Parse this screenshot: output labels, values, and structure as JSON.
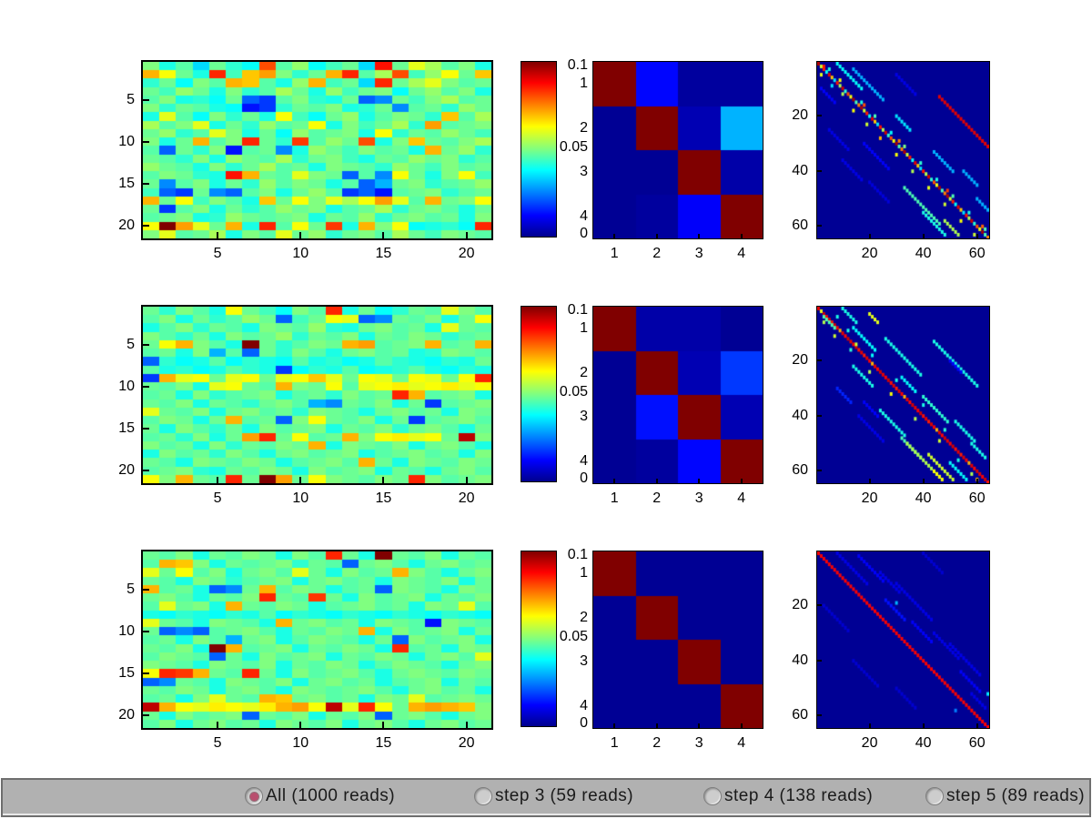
{
  "window": {
    "background": "#ffffff"
  },
  "colormap": {
    "type": "jet",
    "range_min": 0,
    "range_max": 0.1,
    "bar_labels": [
      "0.1",
      "0.05",
      "0"
    ]
  },
  "axes_labels": {
    "heatmap_x": [
      "5",
      "10",
      "15",
      "20"
    ],
    "heatmap_x_pos": [
      5,
      10,
      15,
      20
    ],
    "heatmap_y": [
      "5",
      "10",
      "15",
      "20"
    ],
    "heatmap_y_pos": [
      5,
      10,
      15,
      20
    ],
    "conf_x": [
      "1",
      "2",
      "3",
      "4"
    ],
    "conf_y": [
      "1",
      "2",
      "3",
      "4"
    ],
    "align_x": [
      "20",
      "40",
      "60"
    ],
    "align_y": [
      "20",
      "40",
      "60"
    ],
    "align_pos": [
      20,
      40,
      60
    ]
  },
  "chart_data": [
    {
      "type": "heatmap-triplet",
      "read_profile_heatmap": {
        "type": "heatmap",
        "ncols": 21,
        "nrows": 21,
        "vmin": 0,
        "vmax": 0.1,
        "encoding": "hex pairs, value = int/100 of colormap range",
        "cells_hex": [
          "32282e22302a26502e34262c302256303c362e3228",
          "463e3028542c4448322a3046542e36502c343e3044",
          "2a3026322e46442e2834462c30225430363c322e30",
          "302c343028322a2e363028342c30322630342e3228",
          "2e32282a263016122e322a2830161a302c32362e30",
          "322a302e28260e122a302e32282a301a2e302a3430",
          "283c2e26322a30283e2c263034282e32302a442e36",
          "362e323c28302a342e303e28322c30362a482e3032",
          "30342a2e3c32283026342e3032283e2a302e34302c",
          "322830462e3254302a522e343050283244302e3236",
          "2e16302a320e2e301a2834302c322e30284630342a",
          "302e2a322834302e362a30322c28302e3430322a2e",
          "34302e28322a30362e302832302e2a34302c322e30",
          "2e32302a285646302e3c3230162e1a3e3028323e2c",
          "301a2e3228302a342e3230282e161e30322a2e3034",
          "2c1612301a162e322830342e12160e2e30322a2e30",
          "46303e2c322e2844303e323c363e483c2e4630323e",
          "30122e3228302a2e343032282e30362a30322e2830",
          "2e3032282a34302e303228302e342a30322e302832",
          "3e64483c304628542e3e30522846323e26282a2654",
          "323c2e303628322e3c30342a30322e36302c32302e"
        ]
      },
      "confusion_matrix": {
        "type": "heatmap",
        "vmin": 0,
        "vmax": 0.1,
        "values": [
          [
            0.1,
            0.013,
            0.003,
            0.003
          ],
          [
            0.002,
            0.1,
            0.005,
            0.03
          ],
          [
            0.002,
            0.002,
            0.1,
            0.004
          ],
          [
            0.002,
            0.003,
            0.012,
            0.1
          ]
        ]
      },
      "alignment_matrix": {
        "type": "sparse-heatmap",
        "n": 64,
        "bg_t": 2,
        "diagonal": [
          95,
          58,
          85,
          38,
          90,
          68,
          35,
          86,
          55,
          92,
          42,
          80,
          62,
          96,
          45,
          75
        ],
        "segments": [
          [
            1,
            8,
            10,
            38
          ],
          [
            3,
            14,
            12,
            30
          ],
          [
            10,
            2,
            6,
            12
          ],
          [
            13,
            46,
            19,
            90
          ],
          [
            5,
            30,
            8,
            10
          ],
          [
            20,
            30,
            6,
            35
          ],
          [
            30,
            18,
            10,
            12
          ],
          [
            33,
            44,
            8,
            30
          ],
          [
            40,
            55,
            6,
            30
          ],
          [
            46,
            33,
            14,
            45
          ],
          [
            50,
            60,
            5,
            30
          ],
          [
            55,
            40,
            9,
            40
          ],
          [
            25,
            5,
            8,
            10
          ],
          [
            44,
            20,
            8,
            9
          ],
          [
            58,
            48,
            6,
            55
          ],
          [
            36,
            10,
            8,
            10
          ]
        ],
        "dots": [
          [
            3,
            5,
            40
          ],
          [
            5,
            2,
            60
          ],
          [
            7,
            9,
            62
          ],
          [
            9,
            6,
            35
          ],
          [
            12,
            10,
            55
          ],
          [
            15,
            17,
            40
          ],
          [
            18,
            14,
            62
          ],
          [
            20,
            22,
            45
          ],
          [
            23,
            19,
            58
          ],
          [
            26,
            28,
            38
          ],
          [
            28,
            24,
            70
          ],
          [
            31,
            33,
            50
          ],
          [
            34,
            30,
            62
          ],
          [
            37,
            39,
            42
          ],
          [
            40,
            36,
            55
          ],
          [
            43,
            45,
            40
          ],
          [
            46,
            42,
            60
          ],
          [
            49,
            51,
            45
          ],
          [
            52,
            48,
            58
          ],
          [
            55,
            57,
            40
          ],
          [
            58,
            54,
            62
          ],
          [
            61,
            63,
            45
          ],
          [
            63,
            59,
            58
          ],
          [
            2,
            3,
            85
          ],
          [
            16,
            18,
            80
          ],
          [
            29,
            31,
            75
          ],
          [
            47,
            49,
            82
          ],
          [
            60,
            62,
            78
          ]
        ]
      }
    },
    {
      "type": "heatmap-triplet",
      "read_profile_heatmap": {
        "type": "heatmap",
        "ncols": 21,
        "nrows": 21,
        "vmin": 0,
        "vmax": 0.1,
        "encoding": "hex pairs, value = int/100 of colormap range",
        "cells_hex": [
          "302a322e283e302c26322e542830262a302e3c322e",
          "2e3228302a2e3430162c303e3c161a302e3228303e",
          "282e322a302e2832302e342a2830322e30283c302e",
          "322e2a3028322e30342a302e3228302e32302a2e30",
          "303e46322e2864302a2e323046482e3032462e3046",
          "2e3028321e2e16302a322e2830322e30282a32302e",
          "162a26282e262a28262e282a26282e2a28262a2830",
          "2e282a26282e2a2812262a282e26282a2e28262a28",
          "12463c3e303c3e303c3e443c303e3c303e3c303e54",
          "302e32283c3e302e4632303e2e3c3e403c3e403c3e",
          "2e3028322a2e3032282e302a322e3054462e303228",
          "302e3228302e2a30322e1e1a302e322830122e3032",
          "3c302e322830322e302a32302e2830322e30283230",
          "2e32302830462e3016323e302e322830122e30322e",
          "3028322e2a3028322e303228302e322a30322e2830",
          "2e302a3228304854303e2e3046323e403c3e305e32",
          "322e3028322a302e3230462832302e322830322e28",
          "28322e302a322e2830322e3032282e30322e302832",
          "302e2832302e3230282e30322e46302832302e3230",
          "2e30322a28302e323028322e303228302e2830322e",
          "3e3246302e54306448303e32302e323054322e3032"
        ]
      },
      "confusion_matrix": {
        "type": "heatmap",
        "vmin": 0,
        "vmax": 0.1,
        "values": [
          [
            0.1,
            0.004,
            0.004,
            0.002
          ],
          [
            0.002,
            0.1,
            0.005,
            0.018
          ],
          [
            0.002,
            0.014,
            0.1,
            0.005
          ],
          [
            0.002,
            0.003,
            0.013,
            0.1
          ]
        ]
      },
      "alignment_matrix": {
        "type": "sparse-heatmap",
        "n": 64,
        "bg_t": 2,
        "diagonal": [
          90,
          88,
          92,
          86,
          90,
          85,
          91,
          88,
          70,
          90,
          87,
          92
        ],
        "segments": [
          [
            1,
            10,
            6,
            40
          ],
          [
            4,
            3,
            5,
            45
          ],
          [
            8,
            14,
            9,
            38
          ],
          [
            3,
            20,
            4,
            60
          ],
          [
            12,
            26,
            14,
            40
          ],
          [
            13,
            44,
            17,
            40
          ],
          [
            22,
            14,
            8,
            40
          ],
          [
            26,
            32,
            6,
            38
          ],
          [
            30,
            8,
            6,
            16
          ],
          [
            33,
            40,
            10,
            42
          ],
          [
            38,
            24,
            10,
            40
          ],
          [
            42,
            52,
            8,
            40
          ],
          [
            48,
            32,
            8,
            45
          ],
          [
            50,
            58,
            6,
            40
          ],
          [
            54,
            42,
            10,
            58
          ],
          [
            35,
            18,
            6,
            12
          ],
          [
            20,
            50,
            5,
            12
          ],
          [
            50,
            34,
            13,
            55
          ],
          [
            57,
            50,
            7,
            38
          ],
          [
            60,
            44,
            4,
            62
          ],
          [
            40,
            16,
            10,
            10
          ]
        ],
        "dots": [
          [
            4,
            8,
            40
          ],
          [
            6,
            3,
            55
          ],
          [
            9,
            12,
            40
          ],
          [
            11,
            7,
            58
          ],
          [
            16,
            13,
            42
          ],
          [
            18,
            21,
            38
          ],
          [
            24,
            20,
            55
          ],
          [
            27,
            30,
            40
          ],
          [
            32,
            28,
            62
          ],
          [
            36,
            40,
            40
          ],
          [
            41,
            37,
            55
          ],
          [
            45,
            48,
            42
          ],
          [
            49,
            46,
            58
          ],
          [
            56,
            53,
            40
          ],
          [
            61,
            58,
            55
          ],
          [
            63,
            60,
            70
          ],
          [
            2,
            2,
            60
          ],
          [
            14,
            15,
            58
          ]
        ]
      }
    },
    {
      "type": "heatmap-triplet",
      "read_profile_heatmap": {
        "type": "heatmap",
        "ncols": 21,
        "nrows": 21,
        "vmin": 0,
        "vmax": 0.1,
        "encoding": "hex pairs, value = int/100 of colormap range",
        "cells_hex": [
          "302e3228302e323028322e54302864302e3228302e",
          "2e46443228302e30322a302e1630322e2830322e30",
          "3c303e2e322830322e3c3028322e3046322e283032",
          "302e2832302a2e30322830322e302832302e322830",
          "462e3028161a30462e3230282e301632302e283230",
          "30322e28302e3254302e523028322e303228302e32",
          "2e3c30322846302e3230282e30322e302832303c2e",
          "28262a28262a282e262a28262a28262a28262a2826",
          "3c302e2832302e284630322e302832302e0e32302e",
          "30161a162e30322e28302e32304628322e30322830",
          "2e3028322e1e3032282e32302e283016322e303228",
          "302e322864462e303228302e323028542e30283230",
          "2e32302e163028322e303228302e32302830322e3c",
          "32302e2832302e3228302e3230282e32302e283032",
          "3e545246302e543028322e30322e283032302e3230",
          "161a302e2832302e322830322e30282e303228302e",
          "302e32302830322e2832302e30322e2830322e3028",
          "2e3028323c302e464430322e302832303c2e303230",
          "5e463e3c403e3c4046483e5e3c543e304648464432",
          "3028322e303216302e3228302e321630322e283032",
          "2e322830322e302832302e322830322e2830322e30"
        ]
      },
      "confusion_matrix": {
        "type": "heatmap",
        "vmin": 0,
        "vmax": 0.1,
        "values": [
          [
            0.1,
            0.002,
            0.002,
            0.002
          ],
          [
            0.002,
            0.1,
            0.002,
            0.002
          ],
          [
            0.002,
            0.002,
            0.1,
            0.002
          ],
          [
            0.002,
            0.002,
            0.002,
            0.1
          ]
        ]
      },
      "alignment_matrix": {
        "type": "sparse-heatmap",
        "n": 64,
        "bg_t": 2,
        "diagonal": [
          88
        ],
        "segments": [
          [
            1,
            8,
            12,
            10
          ],
          [
            2,
            16,
            10,
            12
          ],
          [
            8,
            24,
            8,
            10
          ],
          [
            18,
            26,
            8,
            14
          ],
          [
            20,
            3,
            10,
            8
          ],
          [
            30,
            44,
            10,
            10
          ],
          [
            34,
            50,
            12,
            10
          ],
          [
            40,
            14,
            10,
            8
          ],
          [
            44,
            54,
            8,
            12
          ],
          [
            50,
            30,
            8,
            8
          ],
          [
            1,
            40,
            8,
            8
          ],
          [
            12,
            30,
            14,
            10
          ],
          [
            26,
            36,
            8,
            12
          ],
          [
            52,
            58,
            6,
            10
          ]
        ],
        "dots": [
          [
            19,
            30,
            30
          ],
          [
            52,
            64,
            35
          ],
          [
            58,
            52,
            25
          ]
        ]
      }
    }
  ],
  "toolbar": {
    "options": [
      {
        "label": "All (1000 reads)",
        "selected": true
      },
      {
        "label": "step 3 (59 reads)",
        "selected": false
      },
      {
        "label": "step 4 (138 reads)",
        "selected": false
      },
      {
        "label": "step 5 (89 reads)",
        "selected": false
      }
    ],
    "colors": {
      "bar_bg": "#b1b1b1",
      "bar_dark": "#6e6e6e",
      "bar_light": "#e8e8e8",
      "selected_dot": "#b94e6e",
      "label_text": "#1a1a1a"
    }
  }
}
